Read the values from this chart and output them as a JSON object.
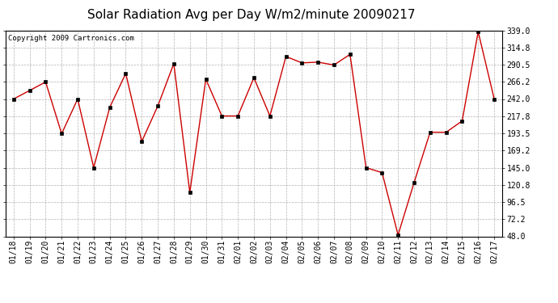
{
  "title": "Solar Radiation Avg per Day W/m2/minute 20090217",
  "copyright": "Copyright 2009 Cartronics.com",
  "labels": [
    "01/18",
    "01/19",
    "01/20",
    "01/21",
    "01/22",
    "01/23",
    "01/24",
    "01/25",
    "01/26",
    "01/27",
    "01/28",
    "01/29",
    "01/30",
    "01/31",
    "02/01",
    "02/02",
    "02/03",
    "02/04",
    "02/05",
    "02/06",
    "02/07",
    "02/08",
    "02/09",
    "02/10",
    "02/11",
    "02/12",
    "02/13",
    "02/14",
    "02/15",
    "02/16",
    "02/17"
  ],
  "values": [
    242,
    254,
    266,
    193,
    242,
    145,
    230,
    278,
    182,
    232,
    292,
    110,
    270,
    218,
    218,
    272,
    218,
    302,
    293,
    294,
    290,
    305,
    145,
    138,
    50,
    124,
    195,
    195,
    211,
    337,
    242
  ],
  "ylim": [
    48.0,
    339.0
  ],
  "yticks": [
    48.0,
    72.2,
    96.5,
    120.8,
    145.0,
    169.2,
    193.5,
    217.8,
    242.0,
    266.2,
    290.5,
    314.8,
    339.0
  ],
  "line_color": "#cc0000",
  "marker": "s",
  "marker_size": 2.5,
  "background_color": "#ffffff",
  "plot_bg_color": "#ffffff",
  "grid_color": "#aaaaaa",
  "title_fontsize": 11,
  "copyright_fontsize": 6.5,
  "tick_fontsize": 7
}
